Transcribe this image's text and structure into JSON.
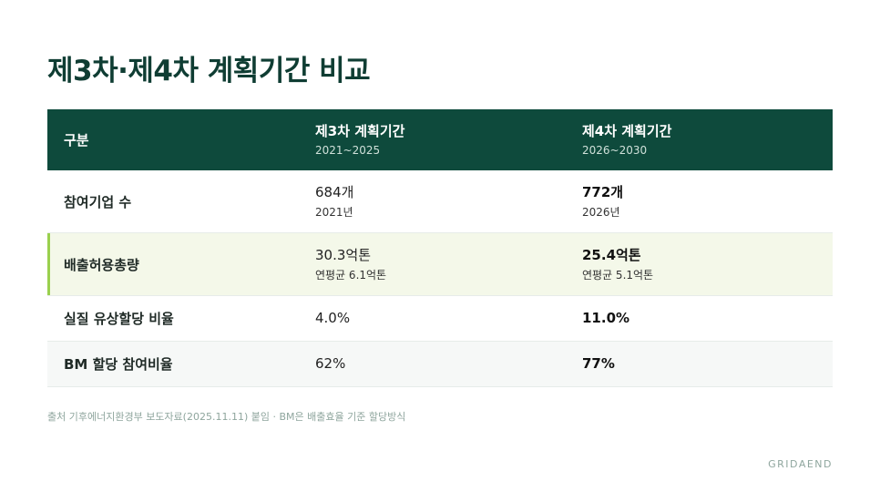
{
  "title": "제3차·제4차 계획기간 비교",
  "table": {
    "header": {
      "col1": "구분",
      "col2": {
        "title": "제3차 계획기간",
        "period": "2021~2025"
      },
      "col3": {
        "title": "제4차 계획기간",
        "period": "2026~2030"
      }
    },
    "rows": [
      {
        "label": "참여기업 수",
        "col2": {
          "value": "684개",
          "sub": "2021년"
        },
        "col3": {
          "value": "772개",
          "sub": "2026년"
        }
      },
      {
        "label": "배출허용총량",
        "col2": {
          "value": "30.3억톤",
          "sub": "연평균 6.1억톤"
        },
        "col3": {
          "value": "25.4억톤",
          "sub": "연평균 5.1억톤"
        }
      },
      {
        "label": "실질 유상할당 비율",
        "col2": {
          "value": "4.0%"
        },
        "col3": {
          "value": "11.0%"
        }
      },
      {
        "label": "BM 할당 참여비율",
        "col2": {
          "value": "62%"
        },
        "col3": {
          "value": "77%"
        }
      }
    ]
  },
  "footnote": "출처 기후에너지환경부 보도자료(2025.11.11) 붙임 · BM은 배출효율 기준 할당방식",
  "brand": "GRIDAEND",
  "colors": {
    "header_bg": "#0e4a3c",
    "highlight_bg": "#f4f8e9",
    "highlight_accent": "#9ad04e",
    "title": "#0f3d33"
  }
}
